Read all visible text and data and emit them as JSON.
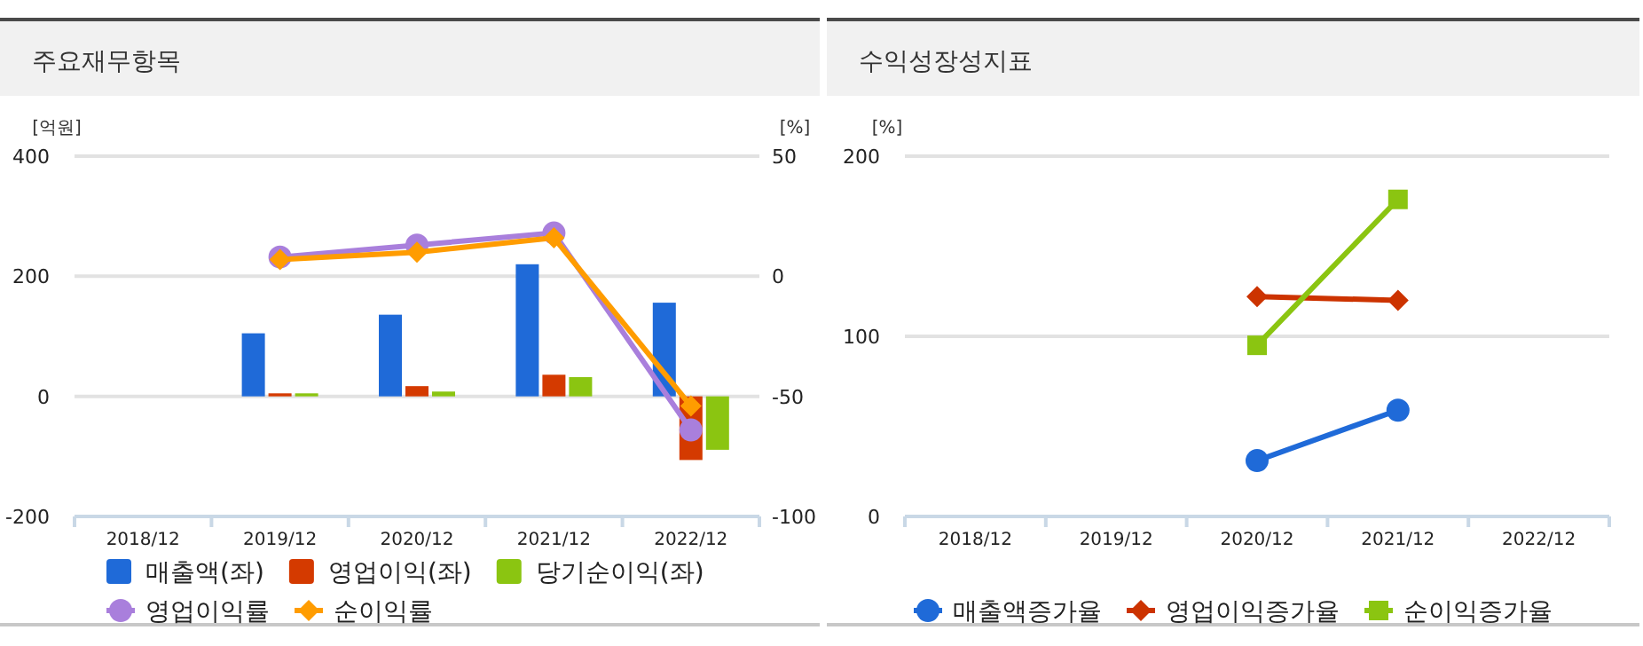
{
  "chart_data": [
    {
      "type": "bar",
      "title": "주요재무항목",
      "ylabel": "[억원]",
      "y2label": "[%]",
      "categories": [
        "2018/12",
        "2019/12",
        "2020/12",
        "2021/12",
        "2022/12"
      ],
      "ylim": [
        -200,
        400
      ],
      "yticks": [
        -200,
        0,
        200,
        400
      ],
      "y2lim": [
        -100,
        50
      ],
      "y2ticks": [
        -100,
        -50,
        0,
        50
      ],
      "grid": "y",
      "legend": "bottom",
      "series": [
        {
          "name": "매출액(좌)",
          "color": "#1f6ad8",
          "values": [
            null,
            105,
            136,
            220,
            156
          ]
        },
        {
          "name": "영업이익(좌)",
          "color": "#d43a00",
          "values": [
            null,
            5,
            17,
            36,
            -106
          ]
        },
        {
          "name": "당기순이익(좌)",
          "color": "#8bc511",
          "values": [
            null,
            5,
            8,
            32,
            -89
          ]
        },
        {
          "name": "영업이익률",
          "type": "line",
          "axis": "y2",
          "marker": "circle",
          "color": "#a97fdc",
          "values": [
            null,
            8,
            13,
            18,
            -64
          ]
        },
        {
          "name": "순이익률",
          "type": "line",
          "axis": "y2",
          "marker": "diamond",
          "color": "#ff9c00",
          "values": [
            null,
            7,
            10,
            16,
            -54
          ]
        }
      ]
    },
    {
      "type": "line",
      "title": "수익성장성지표",
      "ylabel": "[%]",
      "categories": [
        "2018/12",
        "2019/12",
        "2020/12",
        "2021/12",
        "2022/12"
      ],
      "ylim": [
        0,
        200
      ],
      "yticks": [
        0,
        100,
        200
      ],
      "grid": "y",
      "legend": "bottom",
      "series": [
        {
          "name": "매출액증가율",
          "marker": "circle",
          "color": "#1f6ad8",
          "values": [
            null,
            null,
            31,
            59,
            null
          ]
        },
        {
          "name": "영업이익증가율",
          "marker": "diamond",
          "color": "#cc3300",
          "values": [
            null,
            null,
            122,
            120,
            null
          ]
        },
        {
          "name": "순이익증가율",
          "marker": "square",
          "color": "#8bc511",
          "values": [
            null,
            null,
            95,
            176,
            null
          ]
        }
      ]
    }
  ]
}
